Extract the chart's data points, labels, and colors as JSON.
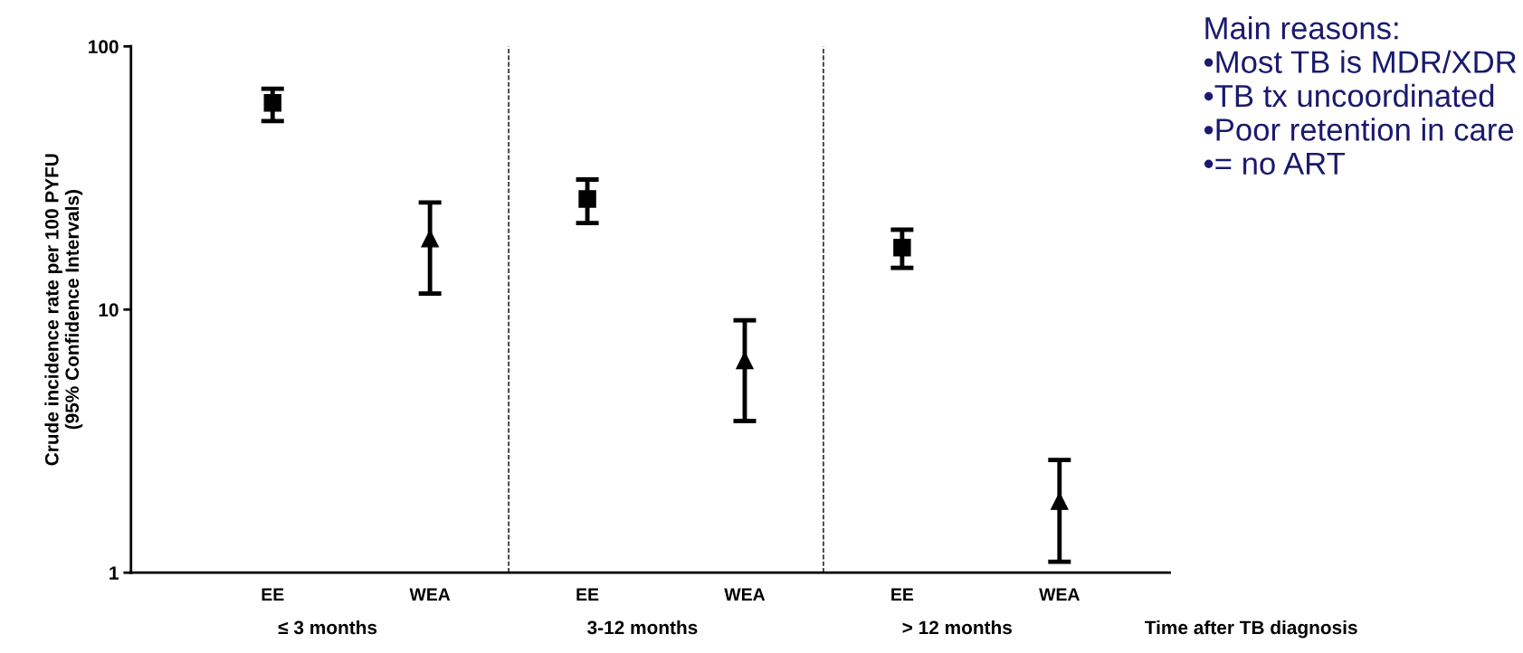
{
  "chart_data": {
    "type": "scatter",
    "xlabel": "Time after TB diagnosis",
    "ylabel": "Crude incidence rate per 100 PYFU\n(95% Confidence Intervals)",
    "categories": [
      "EE",
      "WEA",
      "EE",
      "WEA",
      "EE",
      "WEA"
    ],
    "series": [
      {
        "color": "#000000",
        "marker": "square",
        "values": [
          61,
          null,
          26.3,
          null,
          17.2,
          null
        ],
        "errors": [
          [
            52,
            69
          ],
          null,
          [
            21.3,
            31.2
          ],
          null,
          [
            14.4,
            20.1
          ],
          null
        ]
      },
      {
        "color": "#000000",
        "marker": "triangle",
        "values": [
          null,
          18.6,
          null,
          6.4,
          null,
          1.87
        ],
        "errors": [
          null,
          [
            11.5,
            25.5
          ],
          null,
          [
            3.77,
            9.1
          ],
          null,
          [
            1.1,
            2.68
          ]
        ]
      }
    ],
    "log": "y",
    "ylim": [
      1,
      100
    ],
    "yticks": [
      1,
      10,
      100
    ],
    "grid": false,
    "legend": false,
    "annotations": [
      "≤ 3 months",
      "3-12 months",
      "> 12 months",
      "Main reasons:\n•Most TB is MDR/XDR\n•TB tx uncoordinated\n•Poor retention in care\n•= no ART"
    ]
  }
}
